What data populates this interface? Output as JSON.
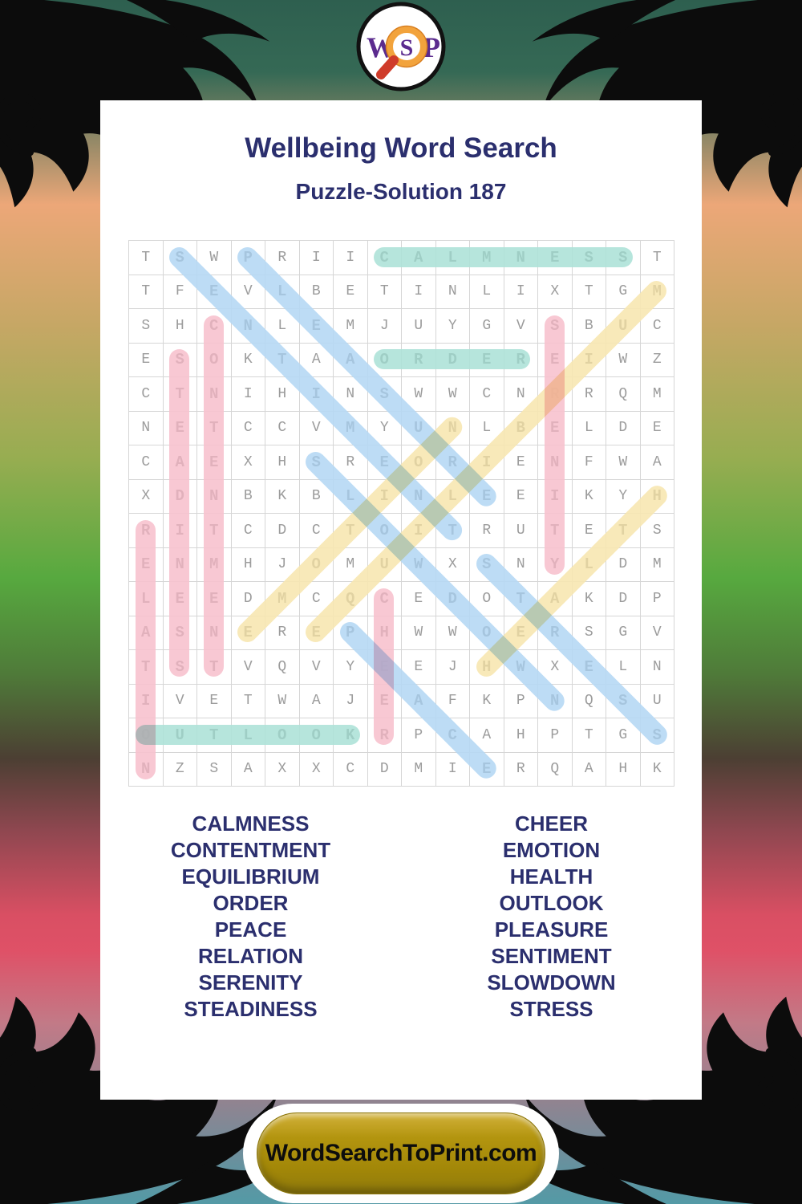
{
  "logo": {
    "w": "W",
    "s": "S",
    "p": "P"
  },
  "header": {
    "title": "Wellbeing Word Search",
    "subtitle": "Puzzle-Solution 187"
  },
  "grid": {
    "size": 16,
    "rows": [
      "TSWPRIICALMNESST",
      "TFEVLBETINLIXTGM",
      "SHCNLEMJUYGVSBUC",
      "ESOKTAAORDEREIWZ",
      "CTNIHINSWWCNRRQM",
      "NETCCVMYUNLBELDE",
      "CAEXHSREORIENFWA",
      "XDNBKBLINLEEIKYH",
      "RITCDCTOITRUTETS",
      "ENMHJOMUWXSNYLDM",
      "LEEDMCQCEDOTAKDP",
      "ASNEREPHWWOERSGV",
      "TSTVQVYEEJHWXELN",
      "IVETWAJEAFKPNQSU",
      "OUTLOOKRPCAHPTGS",
      "NZSAXXCDMIERQAHK"
    ]
  },
  "solutions": [
    {
      "word": "CALMNESS",
      "row": 1,
      "col": 8,
      "dir": "H",
      "color": "teal"
    },
    {
      "word": "ORDER",
      "row": 4,
      "col": 8,
      "dir": "H",
      "color": "teal"
    },
    {
      "word": "OUTLOOK",
      "row": 15,
      "col": 1,
      "dir": "H",
      "color": "teal"
    },
    {
      "word": "STEADINESS",
      "row": 4,
      "col": 2,
      "dir": "V",
      "color": "pink"
    },
    {
      "word": "CONTENTMENT",
      "row": 3,
      "col": 3,
      "dir": "V",
      "color": "pink"
    },
    {
      "word": "RELATION",
      "row": 9,
      "col": 1,
      "dir": "V",
      "color": "pink"
    },
    {
      "word": "SERENITY",
      "row": 3,
      "col": 13,
      "dir": "V",
      "color": "pink"
    },
    {
      "word": "CHEER",
      "row": 11,
      "col": 8,
      "dir": "V",
      "color": "pink"
    },
    {
      "word": "SENTIMENT",
      "row": 1,
      "col": 2,
      "dir": "DR",
      "color": "blue"
    },
    {
      "word": "PLEASURE",
      "row": 1,
      "col": 4,
      "dir": "DR",
      "color": "blue"
    },
    {
      "word": "SLOWDOWN",
      "row": 7,
      "col": 6,
      "dir": "DR",
      "color": "blue"
    },
    {
      "word": "PEACE",
      "row": 12,
      "col": 7,
      "dir": "DR",
      "color": "blue"
    },
    {
      "word": "STRESS",
      "row": 10,
      "col": 11,
      "dir": "DR",
      "color": "blue"
    },
    {
      "word": "EMOTION",
      "row": 12,
      "col": 4,
      "dir": "UR",
      "color": "yellow"
    },
    {
      "word": "EQUILIBRIUM",
      "row": 12,
      "col": 6,
      "dir": "UR",
      "color": "yellow"
    },
    {
      "word": "HEALTH",
      "row": 13,
      "col": 11,
      "dir": "UR",
      "color": "yellow"
    }
  ],
  "highlight_colors": {
    "teal": "#AEE3D8",
    "pink": "#F8C2CE",
    "blue": "#B6D9F4",
    "yellow": "#F8E7B2"
  },
  "word_list": {
    "left": [
      "CALMNESS",
      "CONTENTMENT",
      "EQUILIBRIUM",
      "ORDER",
      "PEACE",
      "RELATION",
      "SERENITY",
      "STEADINESS"
    ],
    "right": [
      "CHEER",
      "EMOTION",
      "HEALTH",
      "OUTLOOK",
      "PLEASURE",
      "SENTIMENT",
      "SLOWDOWN",
      "STRESS"
    ]
  },
  "footer": {
    "button_label": "WordSearchToPrint.com"
  },
  "theme": {
    "title_color": "#2B2F6E",
    "letter_dark": "#141414",
    "letter_gray": "#9C9C9C",
    "logo_purple": "#5B2B8E",
    "lens_orange": "#F2A33C",
    "handle_red": "#CF3B2A"
  }
}
